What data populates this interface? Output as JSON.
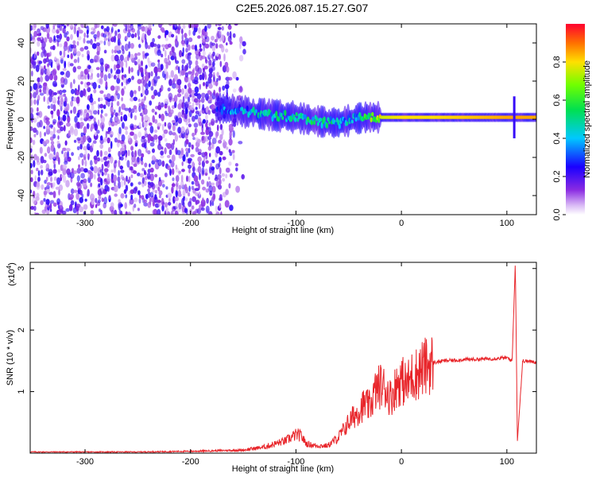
{
  "title": "C2E5.2026.087.15.27.G07",
  "chart_data": [
    {
      "type": "heatmap",
      "xlabel": "Height of straight line (km)",
      "ylabel": "Frequency (Hz)",
      "xlim": [
        -352,
        128
      ],
      "ylim": [
        -50,
        50
      ],
      "xticks": [
        -300,
        -200,
        -100,
        0,
        100
      ],
      "yticks": [
        -40,
        -20,
        0,
        20,
        40
      ],
      "colorbar": {
        "label": "Normalized spectral amplitude",
        "range": [
          0,
          1
        ],
        "ticks": [
          0.0,
          0.2,
          0.4,
          0.6,
          0.8
        ]
      },
      "ridge": {
        "x": [
          -175,
          -150,
          -120,
          -100,
          -80,
          -60,
          -45,
          -35,
          -20,
          0,
          30,
          60,
          100,
          128
        ],
        "freq": [
          6,
          4,
          2,
          1,
          -1,
          -2,
          0,
          1,
          1,
          1,
          1,
          1,
          1,
          1
        ],
        "amplitude": [
          0.3,
          0.35,
          0.45,
          0.42,
          0.5,
          0.4,
          0.35,
          0.5,
          0.75,
          0.8,
          0.8,
          0.82,
          0.85,
          0.85
        ]
      },
      "noise_region": {
        "x_from": -352,
        "x_to": -150,
        "freq_range": [
          -50,
          50
        ]
      }
    },
    {
      "type": "line",
      "xlabel": "Height of straight line (km)",
      "ylabel": "SNR (10 * v/v)",
      "scale_label": "(x10",
      "scale_exp": "4",
      "xlim": [
        -352,
        128
      ],
      "ylim": [
        0,
        3.1
      ],
      "xticks": [
        -300,
        -200,
        -100,
        0,
        100
      ],
      "yticks": [
        1,
        2,
        3
      ],
      "series": [
        {
          "color": "#e8252a",
          "x": [
            -352,
            -300,
            -250,
            -200,
            -150,
            -130,
            -110,
            -100,
            -95,
            -90,
            -80,
            -70,
            -60,
            -50,
            -45,
            -40,
            -35,
            -30,
            -25,
            -20,
            -15,
            -10,
            -5,
            0,
            5,
            10,
            15,
            20,
            30,
            40,
            60,
            80,
            100,
            105,
            108,
            110,
            115,
            128
          ],
          "y": [
            0.02,
            0.02,
            0.02,
            0.03,
            0.05,
            0.1,
            0.2,
            0.3,
            0.28,
            0.15,
            0.12,
            0.12,
            0.25,
            0.5,
            0.6,
            0.7,
            0.8,
            0.75,
            1.0,
            1.1,
            1.05,
            0.9,
            1.1,
            1.2,
            1.1,
            1.25,
            1.3,
            1.38,
            1.47,
            1.5,
            1.52,
            1.53,
            1.55,
            1.5,
            3.1,
            0.2,
            1.5,
            1.48
          ]
        }
      ]
    }
  ]
}
